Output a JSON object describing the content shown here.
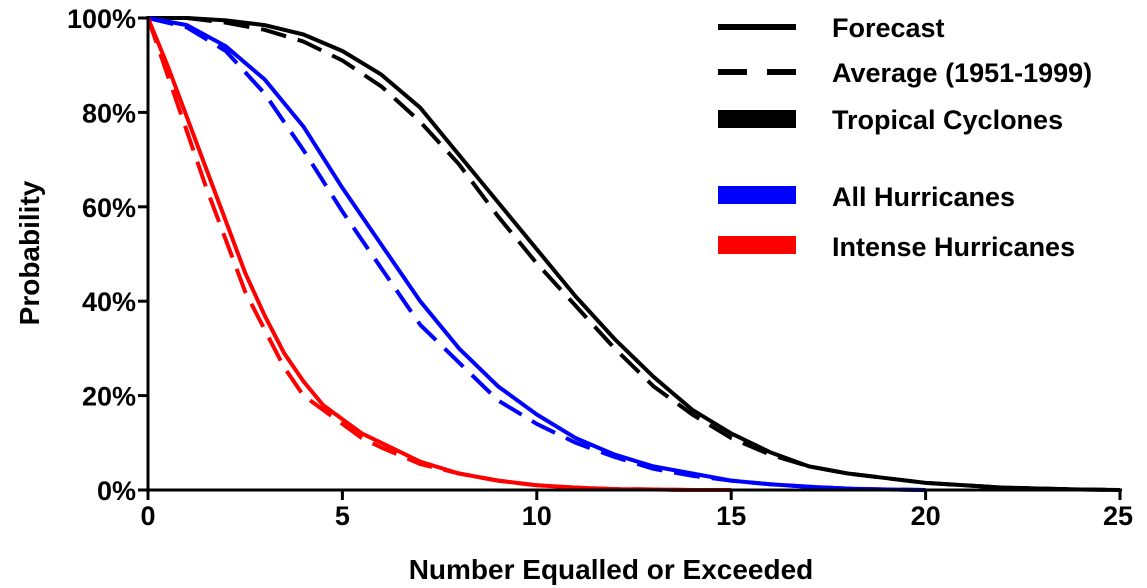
{
  "chart_data": {
    "type": "line",
    "xlabel": "Number Equalled or Exceeded",
    "ylabel": "Probability",
    "xlim": [
      0,
      25
    ],
    "ylim": [
      0,
      100
    ],
    "x_ticks": [
      "0",
      "5",
      "10",
      "15",
      "20",
      "25"
    ],
    "y_ticks": [
      "0%",
      "20%",
      "40%",
      "60%",
      "80%",
      "100%"
    ],
    "grid": false,
    "legend": {
      "placement": "top-right",
      "style_entries": [
        {
          "label": "Forecast",
          "linestyle": "solid"
        },
        {
          "label": "Average (1951-1999)",
          "linestyle": "dashed"
        }
      ],
      "color_entries": [
        {
          "label": "Tropical Cyclones",
          "color": "#000000"
        },
        {
          "label": "All Hurricanes",
          "color": "#0000ff"
        },
        {
          "label": "Intense Hurricanes",
          "color": "#ff0000"
        }
      ]
    },
    "series": [
      {
        "group": "Tropical Cyclones",
        "style": "Forecast",
        "color": "#000000",
        "dashed": false,
        "x": [
          0,
          1,
          2,
          3,
          4,
          5,
          6,
          7,
          8,
          9,
          10,
          11,
          12,
          13,
          14,
          15,
          16,
          17,
          18,
          19,
          20,
          21,
          22,
          23,
          24,
          25
        ],
        "y": [
          100,
          100,
          99.5,
          98.5,
          96.5,
          93,
          88,
          81,
          71,
          61,
          51,
          41,
          32,
          24,
          17,
          12,
          8,
          5,
          3.5,
          2.5,
          1.5,
          1,
          0.5,
          0.3,
          0.1,
          0
        ]
      },
      {
        "group": "Tropical Cyclones",
        "style": "Average (1951-1999)",
        "color": "#000000",
        "dashed": true,
        "x": [
          0,
          1,
          2,
          3,
          4,
          5,
          6,
          7,
          8,
          9,
          10,
          11,
          12,
          13,
          14,
          15,
          16,
          17,
          18,
          19,
          20,
          21,
          22,
          23,
          24,
          25
        ],
        "y": [
          100,
          100,
          99,
          97.5,
          95,
          91,
          85.5,
          78,
          69,
          58,
          48,
          39,
          30,
          22,
          16,
          11,
          7.5,
          5,
          3.5,
          2.5,
          1.5,
          1,
          0.5,
          0.3,
          0.1,
          0
        ]
      },
      {
        "group": "All Hurricanes",
        "style": "Forecast",
        "color": "#0000ff",
        "dashed": false,
        "x": [
          0,
          1,
          2,
          3,
          4,
          5,
          6,
          7,
          8,
          9,
          10,
          11,
          12,
          13,
          14,
          15,
          16,
          17,
          18,
          19,
          20
        ],
        "y": [
          100,
          98.5,
          94,
          87,
          77,
          64,
          52,
          40,
          30,
          22,
          16,
          11,
          7.5,
          5,
          3.5,
          2,
          1.2,
          0.7,
          0.3,
          0.1,
          0
        ]
      },
      {
        "group": "All Hurricanes",
        "style": "Average (1951-1999)",
        "color": "#0000ff",
        "dashed": true,
        "x": [
          0,
          1,
          2,
          3,
          4,
          5,
          6,
          7,
          8,
          9,
          10,
          11,
          12,
          13,
          14,
          15,
          16,
          17,
          18,
          19,
          20
        ],
        "y": [
          100,
          98,
          93,
          84,
          72,
          59,
          47,
          35,
          27,
          19,
          14,
          10,
          7,
          4.5,
          3,
          2,
          1.2,
          0.7,
          0.3,
          0.1,
          0
        ]
      },
      {
        "group": "Intense Hurricanes",
        "style": "Forecast",
        "color": "#ff0000",
        "dashed": false,
        "x": [
          0,
          0.5,
          1,
          1.5,
          2,
          2.5,
          3,
          3.5,
          4,
          4.5,
          5,
          5.5,
          6,
          7,
          8,
          9,
          10,
          11,
          12,
          13,
          14,
          15
        ],
        "y": [
          100,
          90,
          79,
          68,
          57,
          46,
          37,
          29,
          23,
          18,
          15,
          12,
          10,
          6,
          3.5,
          2,
          1,
          0.5,
          0.2,
          0.1,
          0,
          0
        ]
      },
      {
        "group": "Intense Hurricanes",
        "style": "Average (1951-1999)",
        "color": "#ff0000",
        "dashed": true,
        "x": [
          0,
          0.5,
          1,
          1.5,
          2,
          2.5,
          3,
          3.5,
          4,
          4.5,
          5,
          5.5,
          6,
          7,
          8,
          9,
          10,
          11,
          12,
          13,
          14,
          15
        ],
        "y": [
          100,
          88,
          76,
          64,
          53,
          42,
          34,
          26,
          20,
          17,
          14,
          11,
          9,
          5.5,
          3.5,
          2,
          1,
          0.5,
          0.2,
          0.1,
          0,
          0
        ]
      }
    ]
  }
}
